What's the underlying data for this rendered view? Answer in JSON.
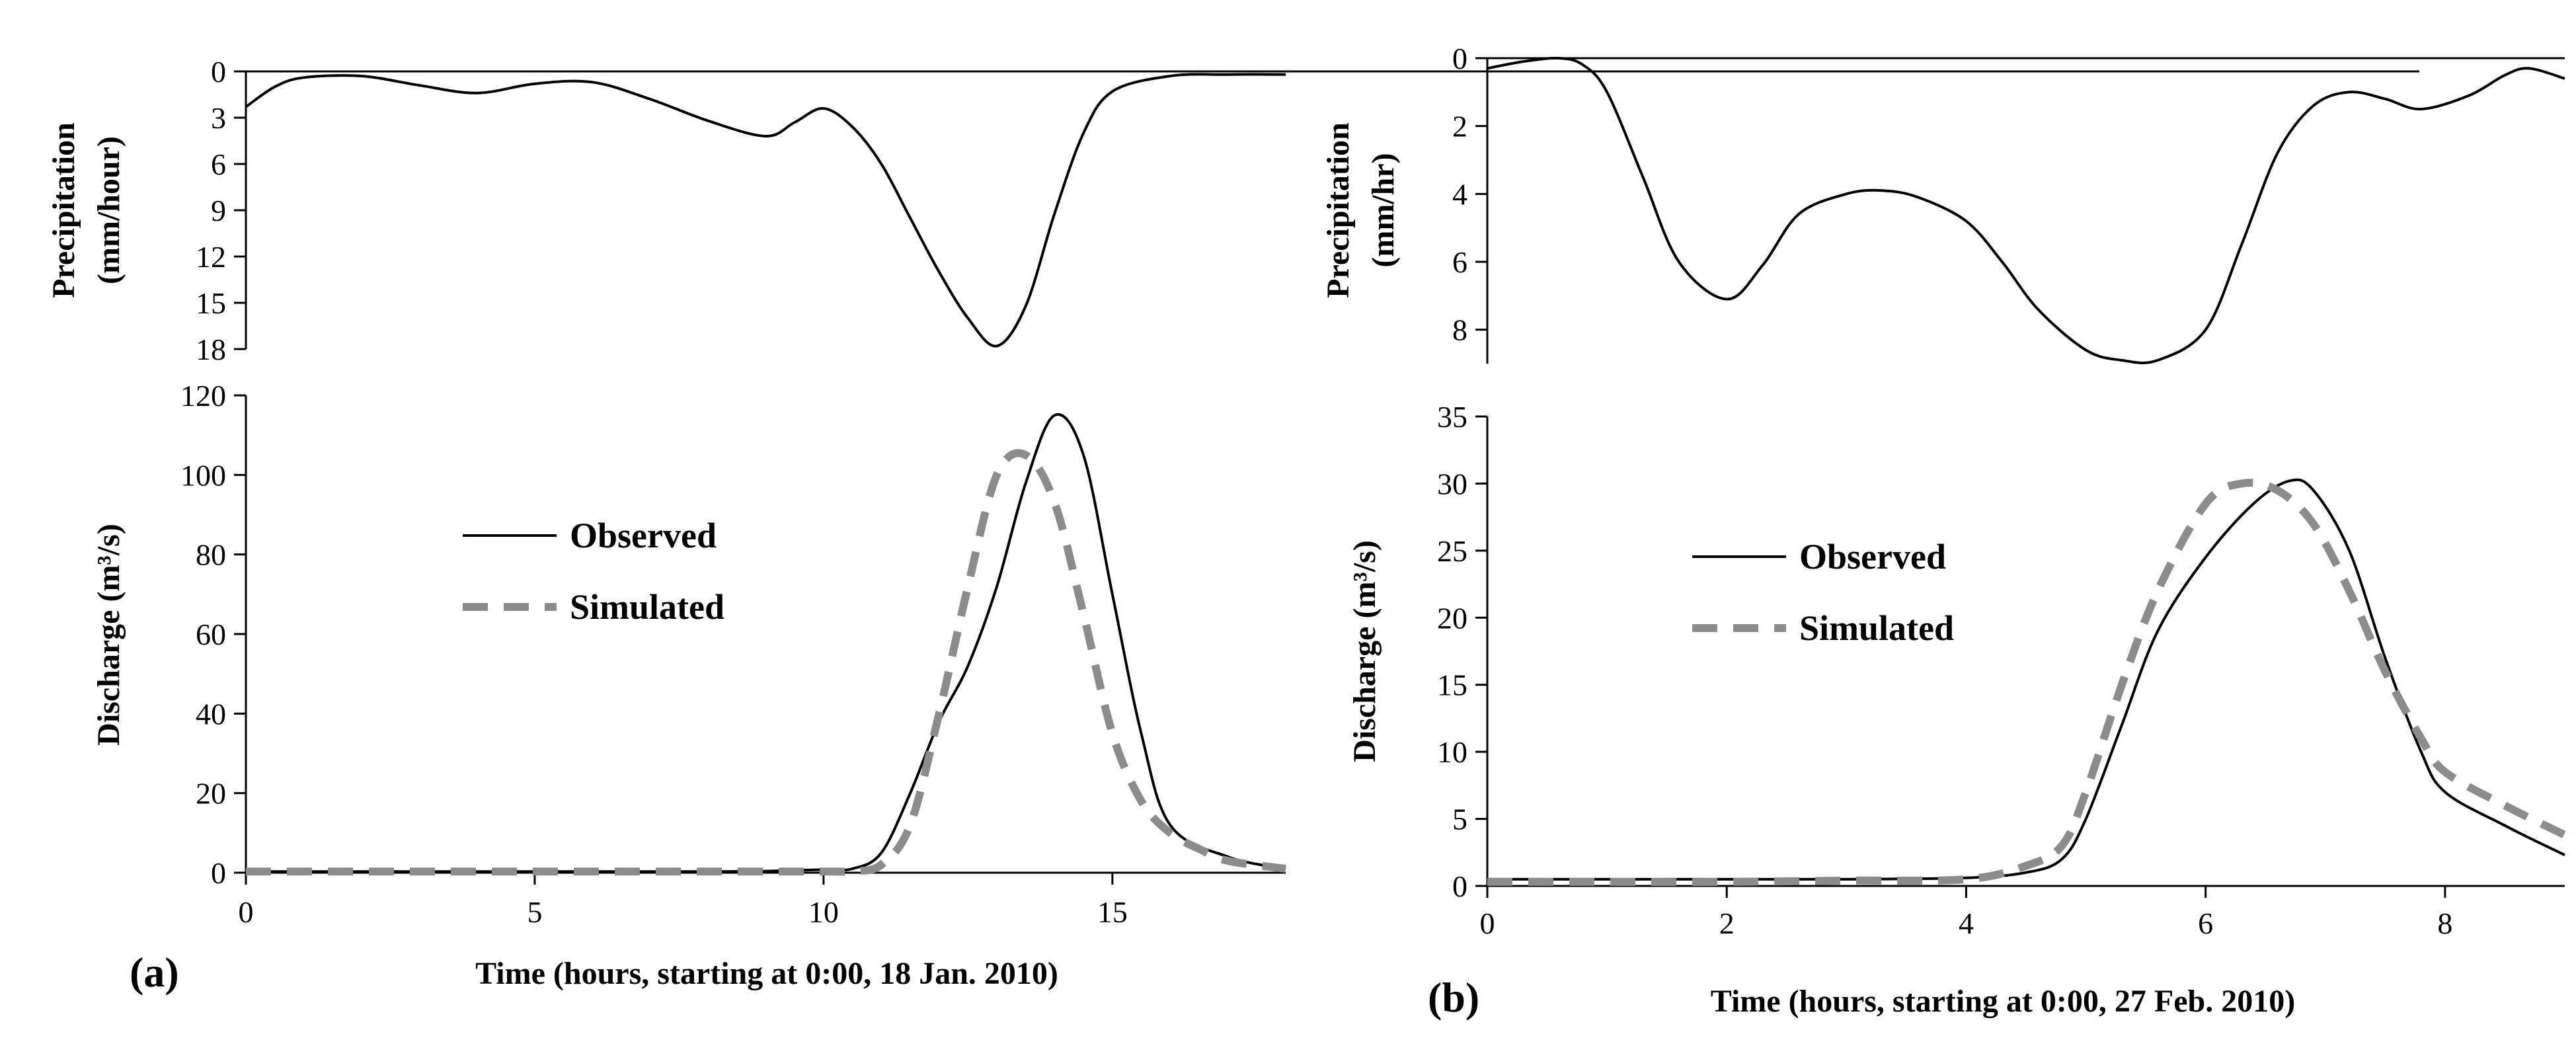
{
  "chart_data": [
    {
      "panel_label": "(a)",
      "type": "line",
      "xlabel": "Time (hours, starting at 0:00, 18 Jan. 2010)",
      "xlim": [
        0,
        18
      ],
      "xticks": [
        0,
        5,
        10,
        15
      ],
      "precipitation": {
        "ylabel_line1": "Precipitation",
        "ylabel_line2": "(mm/hour)",
        "ylim": [
          0,
          18
        ],
        "yticks": [
          0,
          3,
          6,
          9,
          12,
          15,
          18
        ],
        "inverted": true,
        "series": [
          {
            "name": "Precipitation",
            "x": [
              0,
              0.5,
              1,
              2,
              3,
              4,
              5,
              6,
              7,
              8,
              9,
              9.5,
              10,
              10.5,
              11,
              11.5,
              12,
              12.5,
              13,
              13.5,
              14,
              14.5,
              15,
              16,
              17,
              18
            ],
            "y": [
              2.3,
              1.0,
              0.4,
              0.3,
              0.9,
              1.4,
              0.8,
              0.7,
              1.8,
              3.2,
              4.2,
              3.3,
              2.4,
              3.6,
              6.0,
              9.5,
              13.0,
              16.0,
              17.8,
              15.2,
              9.2,
              4.0,
              1.3,
              0.3,
              0.2,
              0.2
            ]
          }
        ]
      },
      "discharge": {
        "ylabel": "Discharge (m³/s)",
        "ylim": [
          0,
          120
        ],
        "yticks": [
          0,
          20,
          40,
          60,
          80,
          100,
          120
        ],
        "series": [
          {
            "name": "Observed",
            "x": [
              0,
              2,
              4,
              6,
              8,
              9,
              10,
              10.5,
              11,
              11.5,
              12,
              12.5,
              13,
              13.5,
              14,
              14.5,
              15,
              15.5,
              16,
              17,
              18
            ],
            "y": [
              0.3,
              0.3,
              0.3,
              0.3,
              0.3,
              0.4,
              0.8,
              1.0,
              5.0,
              20.0,
              38.0,
              52.0,
              72.0,
              98.0,
              115.0,
              105.0,
              70.0,
              35.0,
              12.0,
              4.0,
              1.0
            ]
          },
          {
            "name": "Simulated",
            "x": [
              0,
              2,
              4,
              6,
              8,
              10,
              10.5,
              11,
              11.5,
              12,
              12.5,
              13,
              13.5,
              14,
              14.5,
              15,
              15.5,
              16,
              16.5,
              17,
              18
            ],
            "y": [
              0.3,
              0.3,
              0.3,
              0.3,
              0.3,
              0.3,
              0.4,
              2.0,
              12.0,
              40.0,
              72.0,
              100.0,
              105.0,
              93.0,
              65.0,
              35.0,
              18.0,
              10.0,
              6.0,
              3.0,
              1.0
            ]
          }
        ]
      },
      "legend": [
        "Observed",
        "Simulated"
      ]
    },
    {
      "panel_label": "(b)",
      "type": "line",
      "xlabel": "Time (hours, starting at 0:00, 27 Feb. 2010)",
      "xlim": [
        0,
        9
      ],
      "xticks": [
        0,
        2,
        4,
        6,
        8
      ],
      "precipitation": {
        "ylabel_line1": "Precipitation",
        "ylabel_line2": "(mm/hr)",
        "ylim": [
          0,
          9
        ],
        "yticks": [
          0,
          2,
          4,
          6,
          8
        ],
        "inverted": true,
        "series": [
          {
            "name": "Precipitation",
            "x": [
              0,
              0.3,
              0.6,
              0.8,
              1.0,
              1.3,
              1.6,
              2.0,
              2.3,
              2.6,
              3.0,
              3.3,
              3.6,
              4.0,
              4.3,
              4.6,
              5.0,
              5.3,
              5.6,
              6.0,
              6.3,
              6.6,
              6.9,
              7.2,
              7.5,
              7.8,
              8.2,
              8.5,
              8.7,
              9.0
            ],
            "y": [
              0.3,
              0.1,
              0.0,
              0.2,
              1.0,
              3.5,
              6.0,
              7.1,
              6.1,
              4.6,
              4.0,
              3.9,
              4.1,
              4.8,
              6.0,
              7.4,
              8.6,
              8.9,
              8.9,
              8.0,
              5.5,
              2.8,
              1.4,
              1.0,
              1.2,
              1.5,
              1.1,
              0.5,
              0.3,
              0.6
            ]
          }
        ]
      },
      "discharge": {
        "ylabel": "Discharge (m³/s)",
        "ylim": [
          0,
          35
        ],
        "yticks": [
          0,
          5,
          10,
          15,
          20,
          25,
          30,
          35
        ],
        "series": [
          {
            "name": "Observed",
            "x": [
              0,
              1,
              2,
              3,
              4,
              4.5,
              4.8,
              5.0,
              5.3,
              5.6,
              6.0,
              6.4,
              6.7,
              6.9,
              7.2,
              7.5,
              7.8,
              8.0,
              8.5,
              9.0
            ],
            "y": [
              0.5,
              0.5,
              0.5,
              0.5,
              0.6,
              1.0,
              2.0,
              5.0,
              12.0,
              19.0,
              24.5,
              28.5,
              30.2,
              29.5,
              25.0,
              17.0,
              10.0,
              7.0,
              4.5,
              2.3
            ]
          },
          {
            "name": "Simulated",
            "x": [
              0,
              1,
              2,
              3,
              4,
              4.5,
              4.8,
              5.0,
              5.3,
              5.6,
              6.0,
              6.3,
              6.6,
              6.9,
              7.2,
              7.5,
              7.8,
              8.0,
              8.5,
              9.0
            ],
            "y": [
              0.3,
              0.3,
              0.3,
              0.4,
              0.5,
              1.5,
              3.0,
              7.0,
              15.0,
              22.0,
              28.5,
              30.0,
              29.5,
              27.0,
              22.0,
              16.0,
              11.0,
              8.5,
              6.0,
              3.8
            ]
          }
        ]
      },
      "legend": [
        "Observed",
        "Simulated"
      ]
    }
  ]
}
